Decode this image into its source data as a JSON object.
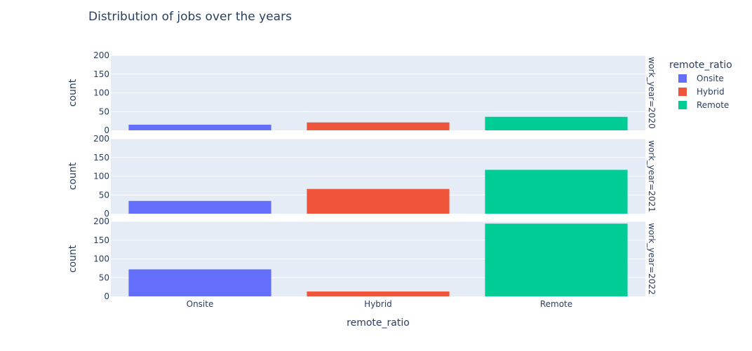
{
  "chart_data": {
    "type": "bar",
    "title": "Distribution of jobs over the years",
    "xlabel": "remote_ratio",
    "ylabel": "count",
    "categories": [
      "Onsite",
      "Hybrid",
      "Remote"
    ],
    "ylim": [
      0,
      200
    ],
    "yticks": [
      0,
      50,
      100,
      150,
      200
    ],
    "grid": true,
    "legend": {
      "title": "remote_ratio",
      "position": "top-right",
      "entries": [
        "Onsite",
        "Hybrid",
        "Remote"
      ]
    },
    "colors": {
      "Onsite": "#636efa",
      "Hybrid": "#ef553b",
      "Remote": "#00cc96",
      "plot_bg": "#e5ecf6",
      "grid": "#ffffff",
      "text": "#2a3f5f"
    },
    "facets": [
      {
        "label": "work_year=2020",
        "values": [
          15,
          21,
          36
        ]
      },
      {
        "label": "work_year=2021",
        "values": [
          34,
          66,
          117
        ]
      },
      {
        "label": "work_year=2022",
        "values": [
          72,
          13,
          194
        ]
      }
    ]
  }
}
